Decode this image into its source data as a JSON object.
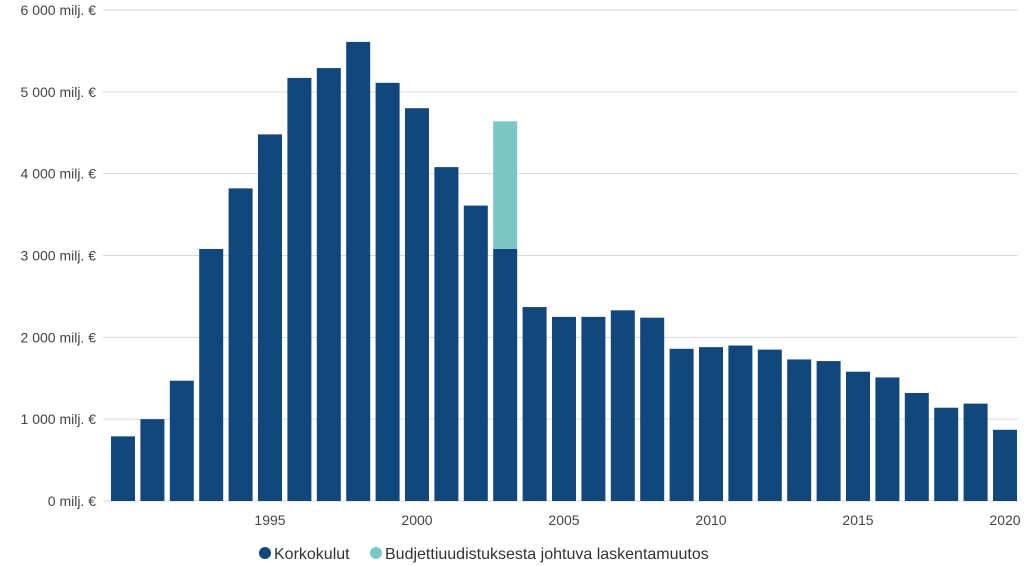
{
  "colors": {
    "korkokulut": "#12477e",
    "laskentamuutos": "#7ac7c6",
    "grid": "#d9d9d9",
    "text": "#444444"
  },
  "legend": [
    {
      "label": "Korkokulut",
      "color": "#12477e"
    },
    {
      "label": "Budjettiuudistuksesta johtuva laskentamuutos",
      "color": "#7ac7c6"
    }
  ],
  "chart_data": {
    "type": "bar",
    "stacked": true,
    "title": "",
    "xlabel": "",
    "ylabel": "",
    "ylim": [
      0,
      6000
    ],
    "y_ticks": [
      {
        "value": 0,
        "label": "0 milj. €"
      },
      {
        "value": 1000,
        "label": "1 000 milj. €"
      },
      {
        "value": 2000,
        "label": "2 000 milj. €"
      },
      {
        "value": 3000,
        "label": "3 000 milj. €"
      },
      {
        "value": 4000,
        "label": "4 000 milj. €"
      },
      {
        "value": 5000,
        "label": "5 000 milj. €"
      },
      {
        "value": 6000,
        "label": "6 000 milj. €"
      }
    ],
    "x_tick_labels": [
      "1995",
      "2000",
      "2005",
      "2010",
      "2015",
      "2020"
    ],
    "grid": true,
    "legend_position": "bottom",
    "categories": [
      1990,
      1991,
      1992,
      1993,
      1994,
      1995,
      1996,
      1997,
      1998,
      1999,
      2000,
      2001,
      2002,
      2003,
      2004,
      2005,
      2006,
      2007,
      2008,
      2009,
      2010,
      2011,
      2012,
      2013,
      2014,
      2015,
      2016,
      2017,
      2018,
      2019,
      2020
    ],
    "series": [
      {
        "name": "Korkokulut",
        "values": [
          790,
          1000,
          1470,
          3080,
          3820,
          4480,
          5170,
          5290,
          5610,
          5110,
          4800,
          4080,
          3610,
          3080,
          2370,
          2250,
          2250,
          2330,
          2240,
          1860,
          1880,
          1900,
          1850,
          1730,
          1710,
          1580,
          1510,
          1320,
          1140,
          1190,
          870
        ]
      },
      {
        "name": "Budjettiuudistuksesta johtuva laskentamuutos",
        "values": [
          0,
          0,
          0,
          0,
          0,
          0,
          0,
          0,
          0,
          0,
          0,
          0,
          0,
          1560,
          0,
          0,
          0,
          0,
          0,
          0,
          0,
          0,
          0,
          0,
          0,
          0,
          0,
          0,
          0,
          0,
          0
        ]
      }
    ]
  }
}
